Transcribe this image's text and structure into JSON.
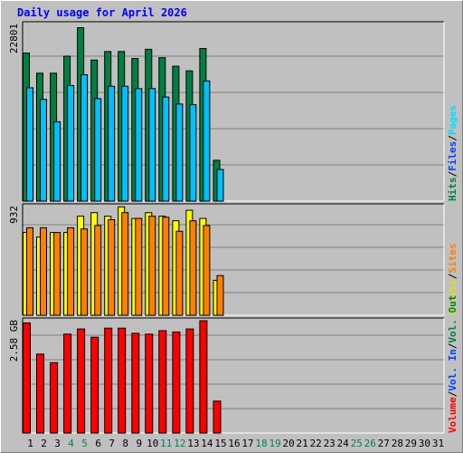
{
  "chart_data": {
    "type": "bar",
    "title": "Daily usage for April 2026",
    "categories": [
      "1",
      "2",
      "3",
      "4",
      "5",
      "6",
      "7",
      "8",
      "9",
      "10",
      "11",
      "12",
      "13",
      "14",
      "15",
      "16",
      "17",
      "18",
      "19",
      "20",
      "21",
      "22",
      "23",
      "24",
      "25",
      "26",
      "27",
      "28",
      "29",
      "30",
      "31"
    ],
    "weekend_days": [
      "4",
      "5",
      "11",
      "12",
      "18",
      "19",
      "25",
      "26"
    ],
    "grid": true,
    "colors": {
      "title": "#0000ff",
      "weekday_label": "#000000",
      "weekend_label": "#00805c",
      "hits": "#008040",
      "files": "#00c0ff",
      "pages": "#00e0ff",
      "visits": "#ffff00",
      "sites": "#ff8000",
      "kbytes": "#ff0000"
    },
    "panels": [
      {
        "id": "hits",
        "scale_label": "22801",
        "ylim": [
          0,
          22801
        ],
        "legend": [
          {
            "text": "Hits",
            "color": "#008040"
          },
          {
            "text": "/",
            "color": "#000000"
          },
          {
            "text": "Files",
            "color": "#0040ff"
          },
          {
            "text": "/",
            "color": "#000000"
          },
          {
            "text": "Pages",
            "color": "#00e0ff"
          }
        ],
        "series": [
          {
            "name": "Hits",
            "color": "#008040",
            "values": [
              19200,
              16600,
              16600,
              18800,
              22500,
              18300,
              19400,
              19400,
              18500,
              19700,
              18600,
              17500,
              16900,
              19800,
              5300,
              0,
              0,
              0,
              0,
              0,
              0,
              0,
              0,
              0,
              0,
              0,
              0,
              0,
              0,
              0,
              0
            ]
          },
          {
            "name": "Files",
            "color": "#00c0ff",
            "values": [
              14700,
              13200,
              10300,
              15000,
              16400,
              13300,
              14900,
              14900,
              14600,
              14600,
              13500,
              12600,
              12500,
              15600,
              4100,
              0,
              0,
              0,
              0,
              0,
              0,
              0,
              0,
              0,
              0,
              0,
              0,
              0,
              0,
              0,
              0
            ]
          }
        ]
      },
      {
        "id": "visits",
        "scale_label": "932",
        "ylim": [
          0,
          932
        ],
        "legend": [
          {
            "text": "Visits",
            "color": "#e0e000"
          },
          {
            "text": "/",
            "color": "#000000"
          },
          {
            "text": "Sites",
            "color": "#ff8000"
          }
        ],
        "series": [
          {
            "name": "Visits",
            "color": "#ffff00",
            "values": [
              710,
              670,
              710,
              710,
              850,
              880,
              850,
              930,
              830,
              880,
              850,
              810,
              900,
              830,
              300,
              0,
              0,
              0,
              0,
              0,
              0,
              0,
              0,
              0,
              0,
              0,
              0,
              0,
              0,
              0,
              0
            ]
          },
          {
            "name": "Sites",
            "color": "#ff8000",
            "values": [
              750,
              750,
              710,
              750,
              740,
              770,
              820,
              880,
              830,
              850,
              840,
              720,
              810,
              770,
              340,
              0,
              0,
              0,
              0,
              0,
              0,
              0,
              0,
              0,
              0,
              0,
              0,
              0,
              0,
              0,
              0
            ]
          }
        ]
      },
      {
        "id": "volume",
        "scale_label": "2.58 GB",
        "ylim": [
          0,
          2.58
        ],
        "legend": [
          {
            "text": "Volume",
            "color": "#ff0000"
          },
          {
            "text": "/",
            "color": "#000000"
          },
          {
            "text": "Vol. In",
            "color": "#0040ff"
          },
          {
            "text": "/",
            "color": "#000000"
          },
          {
            "text": "Vol. Out",
            "color": "#008040"
          }
        ],
        "series": [
          {
            "name": "Volume",
            "color": "#ff0000",
            "values": [
              2.55,
              1.83,
              1.63,
              2.29,
              2.41,
              2.22,
              2.43,
              2.43,
              2.31,
              2.29,
              2.37,
              2.34,
              2.41,
              2.6,
              0.74,
              0,
              0,
              0,
              0,
              0,
              0,
              0,
              0,
              0,
              0,
              0,
              0,
              0,
              0,
              0,
              0
            ]
          }
        ]
      }
    ]
  }
}
